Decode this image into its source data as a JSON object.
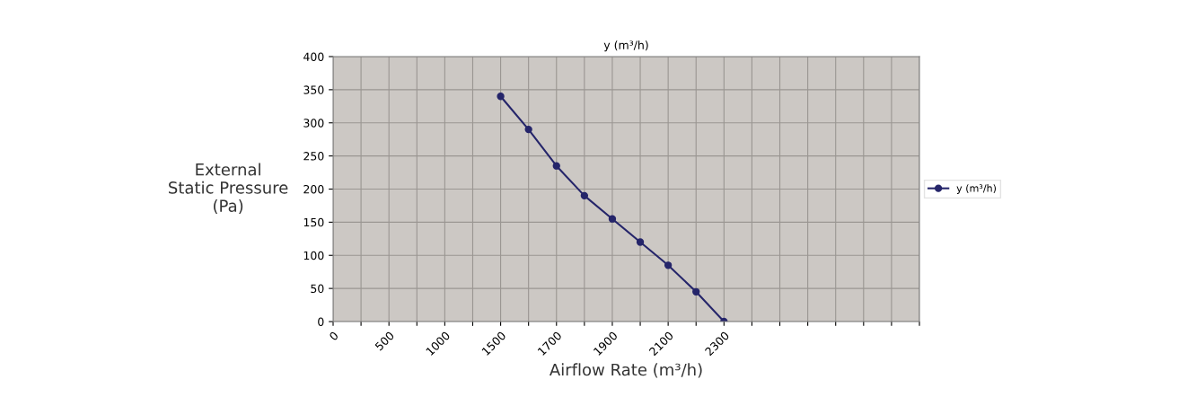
{
  "chart_data": {
    "type": "line",
    "title": "y (m³/h)",
    "xlabel": "Airflow Rate (m³/h)",
    "ylabel": "External\nStatic Pressure\n(Pa)",
    "categories": [
      "0",
      null,
      "500",
      null,
      "1000",
      null,
      "1500",
      null,
      "1700",
      null,
      "1900",
      null,
      "2100",
      null,
      "2300",
      null,
      null,
      null,
      null,
      null,
      null,
      null
    ],
    "series": [
      {
        "name": "y (m³/h)",
        "color": "#25256a",
        "values": [
          null,
          null,
          null,
          null,
          null,
          null,
          340,
          290,
          235,
          190,
          155,
          120,
          85,
          45,
          0,
          null,
          null,
          null,
          null,
          null,
          null,
          null
        ]
      }
    ],
    "ylim": [
      0,
      400
    ],
    "yticks": [
      0,
      50,
      100,
      150,
      200,
      250,
      300,
      350,
      400
    ],
    "grid": true,
    "legend": "right",
    "marker": "circle",
    "line_style": "solid"
  }
}
